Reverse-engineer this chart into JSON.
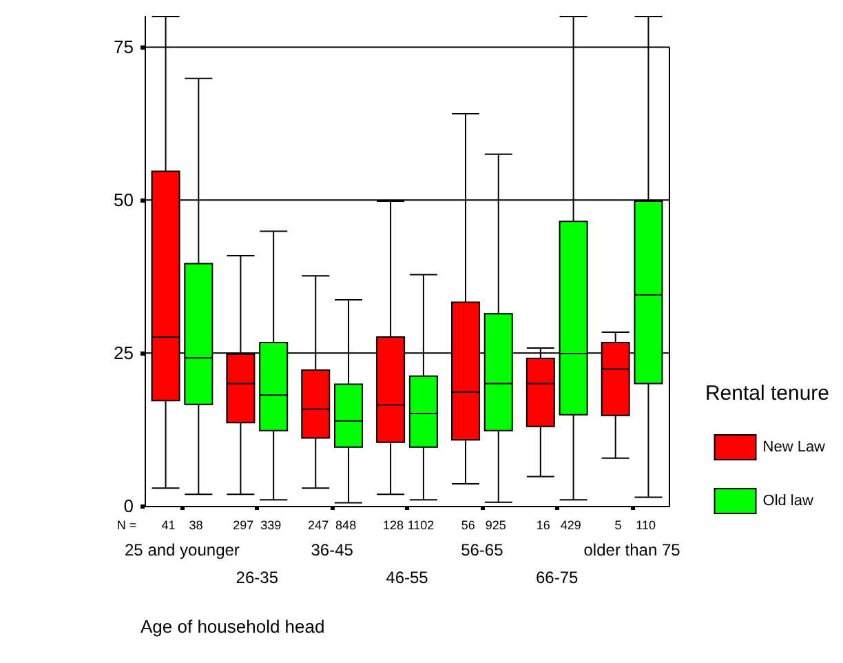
{
  "chart_data": {
    "type": "box",
    "xlabel": "Age of household head",
    "legend_title": "Rental tenure",
    "legend": "right",
    "grid": "y",
    "categories": [
      "25 and younger",
      "26-35",
      "36-45",
      "46-55",
      "56-65",
      "66-75",
      "older than 75"
    ],
    "ylim": [
      0,
      80
    ],
    "yticks": [
      0,
      25,
      50,
      75
    ],
    "series": [
      {
        "name": "New Law",
        "color": "#ff0000",
        "boxes": [
          {
            "low": 2.9,
            "q1": 17.2,
            "median": 27.6,
            "q3": 54.7,
            "high": 80
          },
          {
            "low": 1.9,
            "q1": 13.6,
            "median": 20.0,
            "q3": 24.8,
            "high": 40.9
          },
          {
            "low": 2.9,
            "q1": 11.1,
            "median": 15.8,
            "q3": 22.2,
            "high": 37.6
          },
          {
            "low": 1.9,
            "q1": 10.4,
            "median": 16.5,
            "q3": 27.6,
            "high": 49.8
          },
          {
            "low": 3.6,
            "q1": 10.8,
            "median": 18.6,
            "q3": 33.3,
            "high": 64.1
          },
          {
            "low": 4.8,
            "q1": 13.0,
            "median": 20.0,
            "q3": 24.1,
            "high": 25.8
          },
          {
            "low": 7.8,
            "q1": 14.8,
            "median": 22.4,
            "q3": 26.7,
            "high": 28.4
          }
        ]
      },
      {
        "name": "Old law",
        "color": "#00ff00",
        "boxes": [
          {
            "low": 1.9,
            "q1": 16.6,
            "median": 24.2,
            "q3": 39.6,
            "high": 69.9
          },
          {
            "low": 1.0,
            "q1": 12.3,
            "median": 18.1,
            "q3": 26.7,
            "high": 44.9
          },
          {
            "low": 0.5,
            "q1": 9.6,
            "median": 13.9,
            "q3": 19.9,
            "high": 33.7
          },
          {
            "low": 1.0,
            "q1": 9.6,
            "median": 15.1,
            "q3": 21.2,
            "high": 37.8
          },
          {
            "low": 0.6,
            "q1": 12.3,
            "median": 20.0,
            "q3": 31.4,
            "high": 57.5
          },
          {
            "low": 1.0,
            "q1": 14.9,
            "median": 24.9,
            "q3": 46.5,
            "high": 80
          },
          {
            "low": 1.4,
            "q1": 20.0,
            "median": 34.5,
            "q3": 49.8,
            "high": 80
          }
        ]
      }
    ],
    "annotations": [
      "N =",
      "41",
      "38",
      "297",
      "339",
      "247",
      "848",
      "128",
      "1102",
      "56",
      "925",
      "16",
      "429",
      "5",
      "110"
    ]
  }
}
